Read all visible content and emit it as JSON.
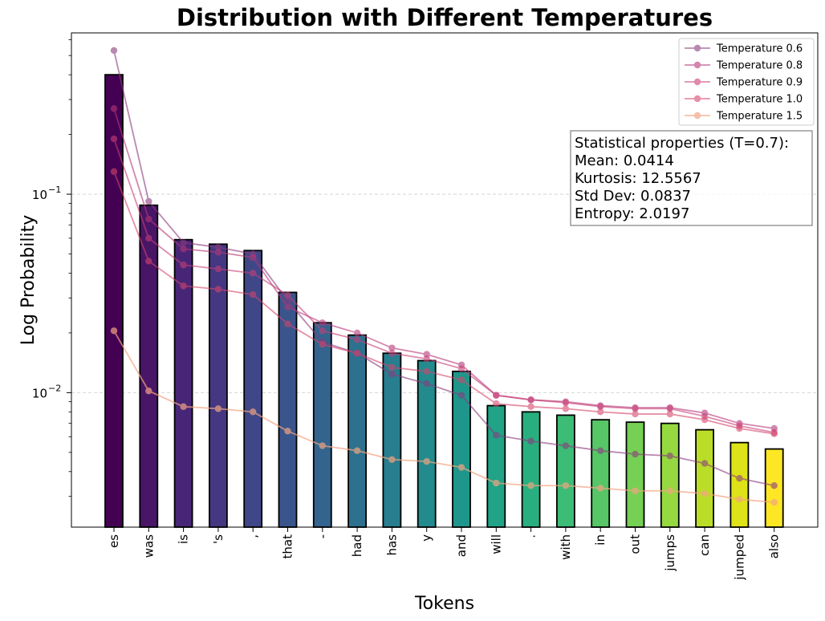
{
  "chart_data": {
    "type": "bar",
    "title": "Distribution with Different Temperatures",
    "xlabel": "Tokens",
    "ylabel": "Log Probability",
    "yscale": "log",
    "ylim": [
      0.0021,
      0.65
    ],
    "y_ticks": [
      {
        "value": 0.1,
        "label": "10",
        "exp": "−1"
      },
      {
        "value": 0.01,
        "label": "10",
        "exp": "−2"
      }
    ],
    "grid": "horizontal dashed",
    "categories": [
      "es",
      "was",
      "is",
      "'s",
      ",",
      "that",
      "-",
      "had",
      "has",
      "y",
      "and",
      "will",
      ".",
      "with",
      "in",
      "out",
      "jumps",
      "can",
      "jumped",
      "also"
    ],
    "bar_values": [
      0.4,
      0.088,
      0.059,
      0.056,
      0.052,
      0.032,
      0.0225,
      0.0195,
      0.0158,
      0.0145,
      0.0128,
      0.0086,
      0.008,
      0.0077,
      0.0073,
      0.0071,
      0.007,
      0.0065,
      0.0056,
      0.0052
    ],
    "bar_colors": [
      "#440154",
      "#481567",
      "#482677",
      "#453781",
      "#3f4788",
      "#39558c",
      "#32648e",
      "#2d718e",
      "#287d8e",
      "#238a8d",
      "#1f968b",
      "#20a386",
      "#29af7f",
      "#3cbc75",
      "#56c667",
      "#75d054",
      "#95d840",
      "#bade28",
      "#dde318",
      "#fde725"
    ],
    "series": [
      {
        "name": "Temperature 0.6",
        "color": "#8b3a7e",
        "opacity": 0.6,
        "values": [
          0.53,
          0.092,
          0.057,
          0.054,
          0.05,
          0.029,
          0.018,
          0.0158,
          0.0124,
          0.0111,
          0.0097,
          0.0061,
          0.0057,
          0.0054,
          0.0051,
          0.0049,
          0.0048,
          0.0044,
          0.0037,
          0.0034
        ]
      },
      {
        "name": "Temperature 0.8",
        "color": "#b73779",
        "opacity": 0.6,
        "values": [
          0.27,
          0.075,
          0.053,
          0.051,
          0.048,
          0.027,
          0.0225,
          0.02,
          0.0168,
          0.0156,
          0.0138,
          0.0097,
          0.0092,
          0.009,
          0.0086,
          0.0084,
          0.0084,
          0.0079,
          0.007,
          0.0066
        ]
      },
      {
        "name": "Temperature 0.9",
        "color": "#c93f77",
        "opacity": 0.6,
        "values": [
          0.19,
          0.06,
          0.044,
          0.042,
          0.04,
          0.031,
          0.0205,
          0.0185,
          0.0158,
          0.0148,
          0.0132,
          0.0097,
          0.0092,
          0.0089,
          0.0085,
          0.0083,
          0.0083,
          0.0076,
          0.0068,
          0.0063
        ]
      },
      {
        "name": "Temperature 1.0",
        "color": "#d6456c",
        "opacity": 0.6,
        "values": [
          0.13,
          0.046,
          0.0345,
          0.0332,
          0.0312,
          0.0222,
          0.0175,
          0.0158,
          0.0134,
          0.0128,
          0.0116,
          0.0088,
          0.0085,
          0.0083,
          0.008,
          0.0078,
          0.0078,
          0.0073,
          0.0066,
          0.0062
        ]
      },
      {
        "name": "Temperature 1.5",
        "color": "#f4a582",
        "opacity": 0.7,
        "values": [
          0.0205,
          0.0102,
          0.0085,
          0.0083,
          0.008,
          0.0064,
          0.0054,
          0.0051,
          0.0046,
          0.0045,
          0.0042,
          0.0035,
          0.0034,
          0.0034,
          0.0033,
          0.0032,
          0.0032,
          0.0031,
          0.0029,
          0.0028
        ]
      }
    ],
    "legend_position": "top-right",
    "annotation": {
      "lines": [
        "Statistical properties (T=0.7):",
        "Mean: 0.0414",
        "Kurtosis: 12.5567",
        "Std Dev: 0.0837",
        "Entropy: 2.0197"
      ]
    }
  }
}
